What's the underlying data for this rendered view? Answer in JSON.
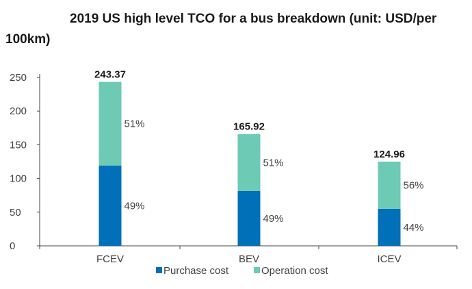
{
  "chart_data": {
    "type": "bar",
    "stacked": true,
    "title_line1": "2019 US high level TCO for a bus breakdown (unit: USD/per",
    "title_line2": "100km)",
    "categories": [
      "FCEV",
      "BEV",
      "ICEV"
    ],
    "totals": [
      243.37,
      165.92,
      124.96
    ],
    "total_labels": [
      "243.37",
      "165.92",
      "124.96"
    ],
    "series": [
      {
        "name": "Purchase cost",
        "color": "#0070b8",
        "values": [
          119.25,
          81.3,
          54.98
        ],
        "percent_labels": [
          "49%",
          "49%",
          "44%"
        ]
      },
      {
        "name": "Operation cost",
        "color": "#6ccab5",
        "values": [
          124.12,
          84.62,
          69.98
        ],
        "percent_labels": [
          "51%",
          "51%",
          "56%"
        ]
      }
    ],
    "ylim": [
      0,
      250
    ],
    "yticks": [
      0,
      50,
      100,
      150,
      200,
      250
    ],
    "ytick_labels": [
      "0",
      "50",
      "100",
      "150",
      "200",
      "250"
    ],
    "xlabel": "",
    "ylabel": "",
    "legend_position": "bottom"
  }
}
